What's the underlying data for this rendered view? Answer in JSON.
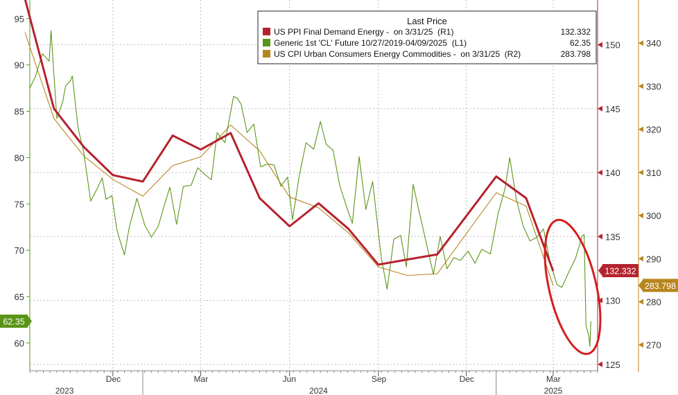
{
  "chart_data": {
    "type": "line",
    "legend": {
      "title": "Last Price",
      "placement": "top-right",
      "entries": [
        {
          "label": "US PPI Final Demand Energy -  on 3/31/25  (R1)",
          "value": "132.332",
          "color": "#b5222f"
        },
        {
          "label": "Generic 1st 'CL' Future 10/27/2019-04/09/2025  (L1)",
          "value": "62.35",
          "color": "#5a9416"
        },
        {
          "label": "US CPI Urban Consumers Energy Commodities -  on 3/31/25  (R2)",
          "value": "283.798",
          "color": "#b8861e"
        }
      ]
    },
    "x_axis": {
      "months": [
        {
          "label": "Dec",
          "date": "2023-12-01"
        },
        {
          "label": "Mar",
          "date": "2024-03-01"
        },
        {
          "label": "Jun",
          "date": "2024-06-01"
        },
        {
          "label": "Sep",
          "date": "2024-09-01"
        },
        {
          "label": "Dec",
          "date": "2024-12-01"
        },
        {
          "label": "Mar",
          "date": "2025-03-01"
        }
      ],
      "years": [
        {
          "label": "2023",
          "date": "2023-10-12"
        },
        {
          "label": "2024",
          "date": "2024-07-01"
        },
        {
          "label": "2025",
          "date": "2025-03-01"
        }
      ],
      "range": [
        "2023-09-06",
        "2025-04-16"
      ]
    },
    "axes": {
      "left": {
        "min": 57,
        "max": 97,
        "ticks": [
          60,
          65,
          70,
          75,
          80,
          85,
          90,
          95
        ],
        "color": "#5a9416"
      },
      "right1": {
        "min": 124.5,
        "max": 153.5,
        "ticks": [
          125,
          130,
          135,
          140,
          145,
          150
        ],
        "color": "#b5222f"
      },
      "right2": {
        "min": 264,
        "max": 350,
        "ticks": [
          270,
          280,
          290,
          300,
          310,
          320,
          330,
          340
        ],
        "color": "#b8861e"
      }
    },
    "grid": true,
    "last_value_tags": [
      {
        "series": "Generic 1st 'CL' Future",
        "text": "62.35",
        "axis": "left",
        "value": 62.35,
        "color": "#5a9416"
      },
      {
        "series": "US PPI Final Demand Energy",
        "text": "132.332",
        "axis": "right1",
        "value": 132.332,
        "color": "#b5222f"
      },
      {
        "series": "US CPI Urban Consumers Energy Commodities",
        "text": "283.798",
        "axis": "right2",
        "value": 283.798,
        "color": "#b8861e"
      }
    ],
    "series": [
      {
        "name": "US PPI Final Demand Energy",
        "axis": "right1",
        "color": "#b5222f",
        "points": [
          [
            "2023-09-01",
            153.6
          ],
          [
            "2023-10-01",
            145.0
          ],
          [
            "2023-11-01",
            142.0
          ],
          [
            "2023-12-01",
            139.8
          ],
          [
            "2024-01-01",
            139.3
          ],
          [
            "2024-02-01",
            142.9
          ],
          [
            "2024-03-01",
            141.8
          ],
          [
            "2024-04-01",
            143.1
          ],
          [
            "2024-05-01",
            138.0
          ],
          [
            "2024-06-01",
            135.8
          ],
          [
            "2024-07-01",
            137.6
          ],
          [
            "2024-08-01",
            135.6
          ],
          [
            "2024-09-01",
            132.8
          ],
          [
            "2024-10-01",
            133.2
          ],
          [
            "2024-11-01",
            133.6
          ],
          [
            "2024-12-01",
            136.6
          ],
          [
            "2025-01-01",
            139.7
          ],
          [
            "2025-02-01",
            138.0
          ],
          [
            "2025-03-01",
            132.3
          ]
        ]
      },
      {
        "name": "US CPI Urban Consumers Energy Commodities",
        "axis": "right2",
        "color": "#b8861e",
        "points": [
          [
            "2023-09-01",
            342.5
          ],
          [
            "2023-10-01",
            322.5
          ],
          [
            "2023-11-01",
            313.8
          ],
          [
            "2023-12-01",
            308.4
          ],
          [
            "2024-01-01",
            304.5
          ],
          [
            "2024-02-01",
            311.6
          ],
          [
            "2024-03-01",
            313.6
          ],
          [
            "2024-04-01",
            321.0
          ],
          [
            "2024-05-01",
            315.0
          ],
          [
            "2024-06-01",
            304.3
          ],
          [
            "2024-07-01",
            301.8
          ],
          [
            "2024-08-01",
            296.0
          ],
          [
            "2024-09-01",
            288.1
          ],
          [
            "2024-10-01",
            286.1
          ],
          [
            "2024-11-01",
            286.5
          ],
          [
            "2024-12-01",
            295.8
          ],
          [
            "2025-01-01",
            305.3
          ],
          [
            "2025-02-01",
            302.2
          ],
          [
            "2025-03-01",
            283.8
          ]
        ]
      },
      {
        "name": "Generic 1st 'CL' Future",
        "axis": "left",
        "color": "#5a9416",
        "points": [
          [
            "2023-09-06",
            87.5
          ],
          [
            "2023-09-12",
            88.8
          ],
          [
            "2023-09-19",
            91.2
          ],
          [
            "2023-09-26",
            90.4
          ],
          [
            "2023-09-28",
            93.7
          ],
          [
            "2023-10-04",
            84.2
          ],
          [
            "2023-10-10",
            86.0
          ],
          [
            "2023-10-13",
            87.7
          ],
          [
            "2023-10-18",
            88.3
          ],
          [
            "2023-10-20",
            88.8
          ],
          [
            "2023-10-26",
            83.2
          ],
          [
            "2023-11-01",
            80.5
          ],
          [
            "2023-11-08",
            75.3
          ],
          [
            "2023-11-15",
            76.7
          ],
          [
            "2023-11-20",
            77.8
          ],
          [
            "2023-11-24",
            75.5
          ],
          [
            "2023-11-30",
            75.9
          ],
          [
            "2023-12-05",
            72.3
          ],
          [
            "2023-12-08",
            71.2
          ],
          [
            "2023-12-13",
            69.5
          ],
          [
            "2023-12-18",
            72.5
          ],
          [
            "2023-12-26",
            75.6
          ],
          [
            "2024-01-03",
            72.7
          ],
          [
            "2024-01-10",
            71.4
          ],
          [
            "2024-01-17",
            72.6
          ],
          [
            "2024-01-24",
            75.1
          ],
          [
            "2024-01-29",
            76.8
          ],
          [
            "2024-02-05",
            72.8
          ],
          [
            "2024-02-12",
            76.9
          ],
          [
            "2024-02-20",
            77.0
          ],
          [
            "2024-02-27",
            78.9
          ],
          [
            "2024-03-05",
            78.2
          ],
          [
            "2024-03-12",
            77.6
          ],
          [
            "2024-03-18",
            82.7
          ],
          [
            "2024-03-26",
            81.6
          ],
          [
            "2024-04-04",
            86.6
          ],
          [
            "2024-04-08",
            86.4
          ],
          [
            "2024-04-12",
            85.7
          ],
          [
            "2024-04-18",
            82.7
          ],
          [
            "2024-04-25",
            83.6
          ],
          [
            "2024-05-02",
            79.0
          ],
          [
            "2024-05-09",
            79.3
          ],
          [
            "2024-05-16",
            79.2
          ],
          [
            "2024-05-23",
            76.9
          ],
          [
            "2024-05-30",
            77.9
          ],
          [
            "2024-06-04",
            73.3
          ],
          [
            "2024-06-11",
            78.0
          ],
          [
            "2024-06-18",
            81.6
          ],
          [
            "2024-06-26",
            80.9
          ],
          [
            "2024-07-03",
            83.9
          ],
          [
            "2024-07-09",
            81.4
          ],
          [
            "2024-07-16",
            80.8
          ],
          [
            "2024-07-23",
            76.96
          ],
          [
            "2024-07-30",
            74.7
          ],
          [
            "2024-08-05",
            72.9
          ],
          [
            "2024-08-12",
            80.1
          ],
          [
            "2024-08-19",
            74.4
          ],
          [
            "2024-08-26",
            77.4
          ],
          [
            "2024-09-04",
            69.2
          ],
          [
            "2024-09-10",
            65.8
          ],
          [
            "2024-09-17",
            71.2
          ],
          [
            "2024-09-24",
            71.6
          ],
          [
            "2024-09-30",
            68.2
          ],
          [
            "2024-10-07",
            77.1
          ],
          [
            "2024-10-14",
            73.8
          ],
          [
            "2024-10-21",
            70.6
          ],
          [
            "2024-10-28",
            67.4
          ],
          [
            "2024-11-04",
            71.5
          ],
          [
            "2024-11-11",
            68.0
          ],
          [
            "2024-11-18",
            69.2
          ],
          [
            "2024-11-25",
            68.9
          ],
          [
            "2024-12-03",
            69.9
          ],
          [
            "2024-12-10",
            68.6
          ],
          [
            "2024-12-17",
            70.1
          ],
          [
            "2024-12-26",
            69.6
          ],
          [
            "2025-01-03",
            73.96
          ],
          [
            "2025-01-10",
            76.6
          ],
          [
            "2025-01-15",
            80.0
          ],
          [
            "2025-01-22",
            75.4
          ],
          [
            "2025-01-29",
            72.6
          ],
          [
            "2025-02-05",
            71.0
          ],
          [
            "2025-02-12",
            71.4
          ],
          [
            "2025-02-19",
            72.3
          ],
          [
            "2025-02-26",
            68.6
          ],
          [
            "2025-03-05",
            66.3
          ],
          [
            "2025-03-10",
            66.0
          ],
          [
            "2025-03-17",
            67.6
          ],
          [
            "2025-03-24",
            69.1
          ],
          [
            "2025-03-31",
            71.5
          ],
          [
            "2025-04-02",
            71.7
          ],
          [
            "2025-04-03",
            66.9
          ],
          [
            "2025-04-04",
            61.9
          ],
          [
            "2025-04-07",
            60.7
          ],
          [
            "2025-04-08",
            59.6
          ],
          [
            "2025-04-09",
            62.35
          ]
        ]
      }
    ]
  }
}
